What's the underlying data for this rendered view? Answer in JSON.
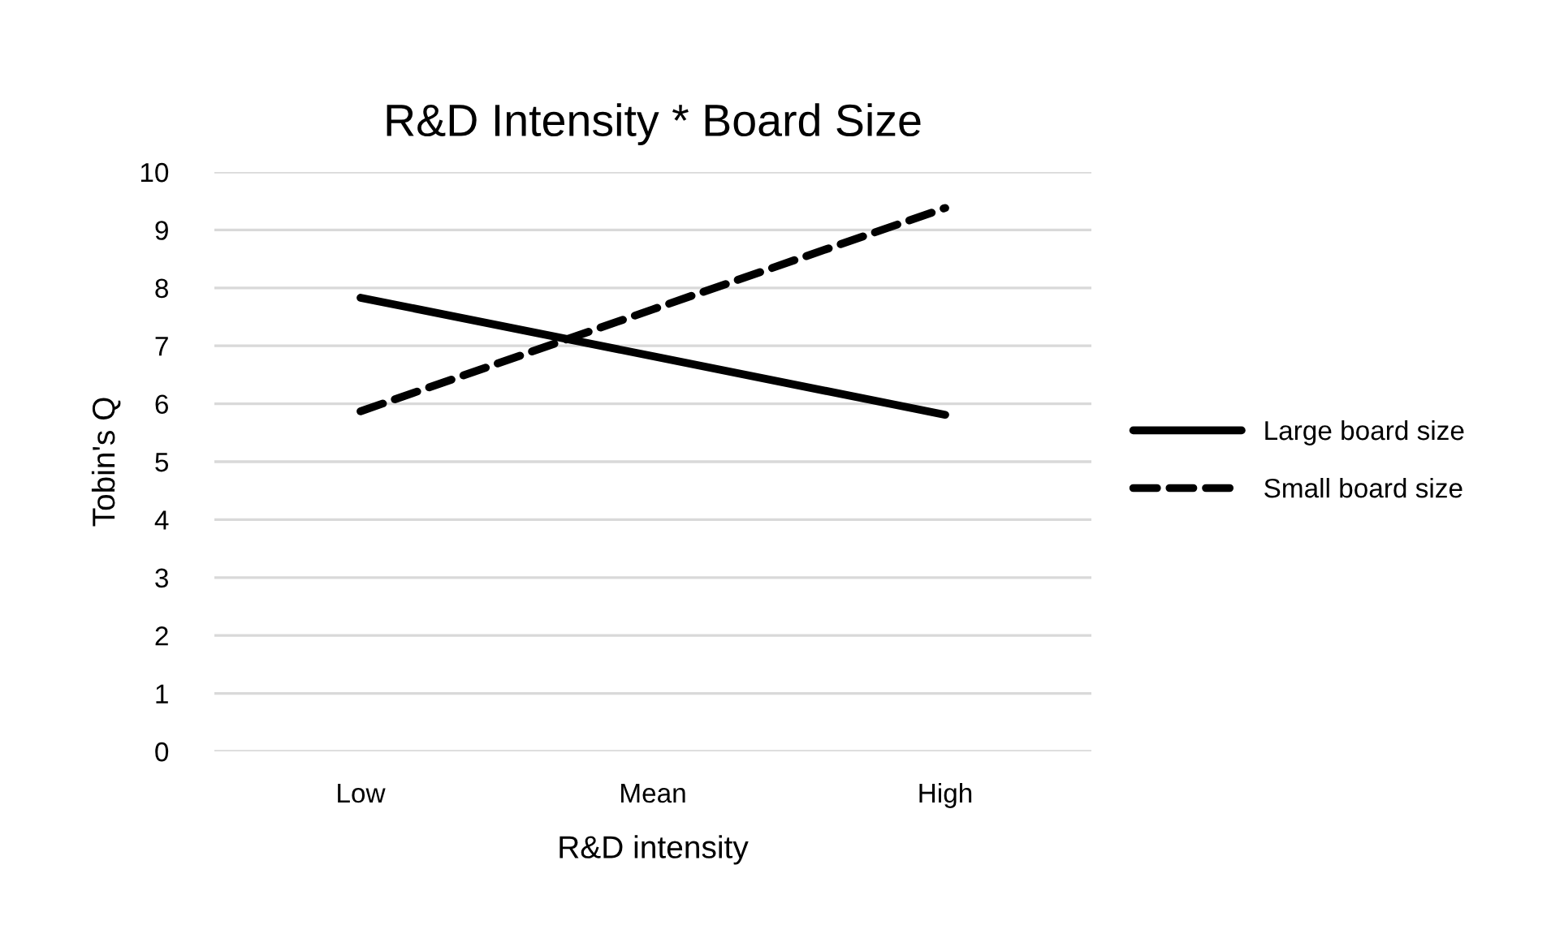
{
  "chart_data": {
    "type": "line",
    "title": "R&D Intensity * Board Size",
    "xlabel": "R&D intensity",
    "ylabel": "Tobin's Q",
    "categories": [
      "Low",
      "Mean",
      "High"
    ],
    "series": [
      {
        "name": "Large board size",
        "color": "#000000",
        "line_style": "solid",
        "values": [
          7.83,
          6.82,
          5.81
        ]
      },
      {
        "name": "Small board size",
        "color": "#000000",
        "line_style": "dashed",
        "values": [
          5.87,
          7.63,
          9.38
        ]
      }
    ],
    "ylim": [
      0,
      10
    ],
    "yticks": [
      0,
      1,
      2,
      3,
      4,
      5,
      6,
      7,
      8,
      9,
      10
    ],
    "grid": "y",
    "legend": "right",
    "marker": "none"
  }
}
